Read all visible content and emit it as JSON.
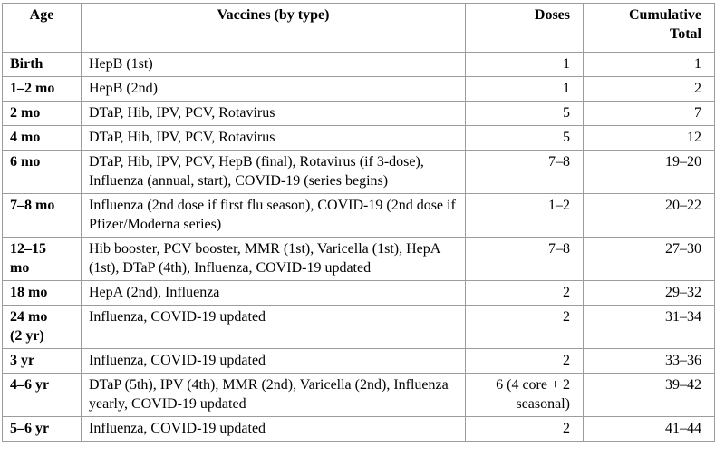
{
  "colors": {
    "border": "#9c9c9c",
    "text": "#000000",
    "background": "#ffffff"
  },
  "table": {
    "headers": {
      "age": "Age",
      "vaccines": "Vaccines (by type)",
      "doses": "Doses",
      "cumulative": "Cumulative\nTotal"
    },
    "rows": [
      {
        "age": "Birth",
        "vaccines": "HepB (1st)",
        "doses": "1",
        "cumulative": "1"
      },
      {
        "age": "1–2 mo",
        "vaccines": "HepB (2nd)",
        "doses": "1",
        "cumulative": "2"
      },
      {
        "age": "2 mo",
        "vaccines": "DTaP, Hib, IPV, PCV, Rotavirus",
        "doses": "5",
        "cumulative": "7"
      },
      {
        "age": "4 mo",
        "vaccines": "DTaP, Hib, IPV, PCV, Rotavirus",
        "doses": "5",
        "cumulative": "12"
      },
      {
        "age": "6 mo",
        "vaccines": "DTaP, Hib, IPV, PCV, HepB (final), Rotavirus (if 3-dose), Influenza (annual, start), COVID-19 (series begins)",
        "doses": "7–8",
        "cumulative": "19–20"
      },
      {
        "age": "7–8 mo",
        "vaccines": "Influenza (2nd dose if first flu season), COVID-19 (2nd dose if Pfizer/Moderna series)",
        "doses": "1–2",
        "cumulative": "20–22"
      },
      {
        "age": "12–15\nmo",
        "vaccines": "Hib booster, PCV booster, MMR (1st), Varicella (1st), HepA (1st), DTaP (4th), Influenza, COVID-19 updated",
        "doses": "7–8",
        "cumulative": "27–30"
      },
      {
        "age": "18 mo",
        "vaccines": "HepA (2nd), Influenza",
        "doses": "2",
        "cumulative": "29–32"
      },
      {
        "age": "24 mo\n(2 yr)",
        "vaccines": "Influenza, COVID-19 updated",
        "doses": "2",
        "cumulative": "31–34"
      },
      {
        "age": "3 yr",
        "vaccines": "Influenza, COVID-19 updated",
        "doses": "2",
        "cumulative": "33–36"
      },
      {
        "age": "4–6 yr",
        "vaccines": "DTaP (5th), IPV (4th), MMR (2nd), Varicella (2nd), Influenza yearly, COVID-19 updated",
        "doses": "6 (4 core + 2 seasonal)",
        "cumulative": "39–42"
      },
      {
        "age": "5–6 yr",
        "vaccines": "Influenza, COVID-19 updated",
        "doses": "2",
        "cumulative": "41–44"
      }
    ]
  }
}
